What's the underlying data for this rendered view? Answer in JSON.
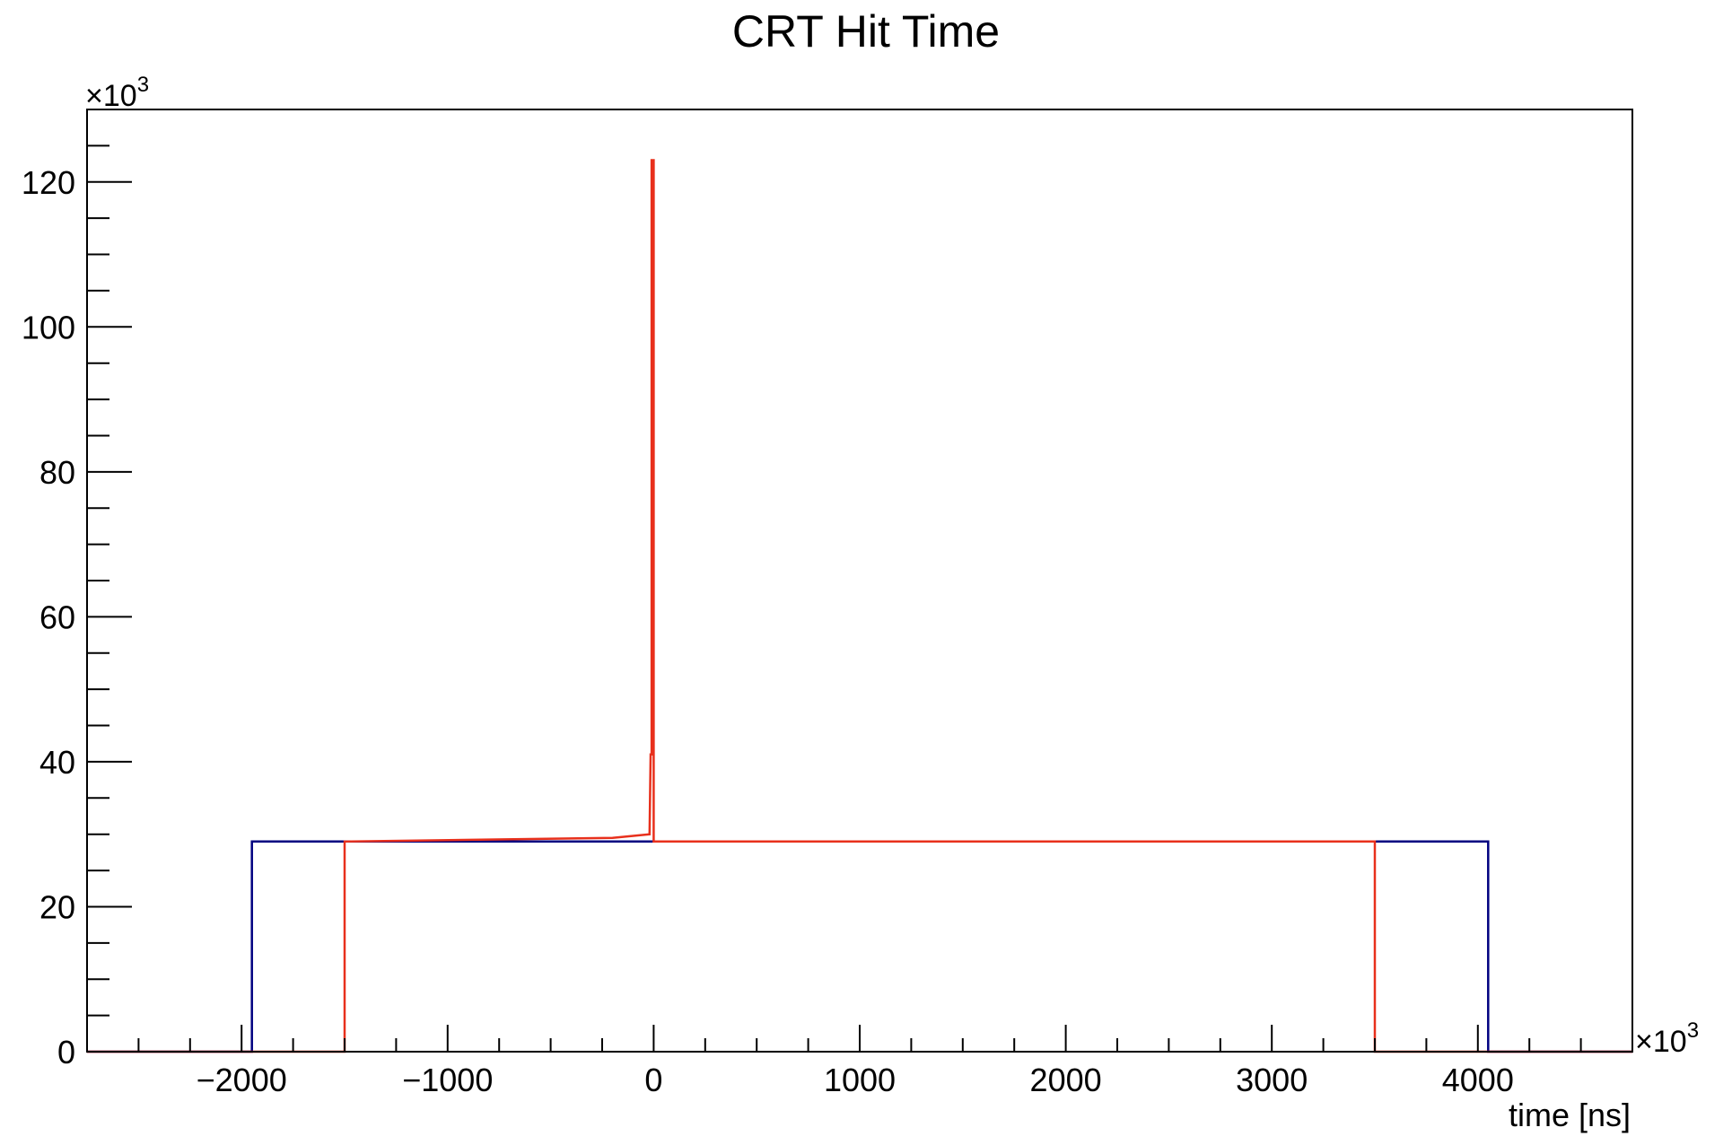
{
  "chart_data": {
    "type": "line",
    "title": "CRT Hit Time",
    "xlabel": "time [ns]",
    "ylabel": "",
    "x_multiplier_label": "×10",
    "x_multiplier_exp": "3",
    "y_multiplier_label": "×10",
    "y_multiplier_exp": "3",
    "xlim": [
      -2750,
      4750
    ],
    "ylim": [
      0,
      130
    ],
    "x_ticks": [
      -2000,
      -1000,
      0,
      1000,
      2000,
      3000,
      4000
    ],
    "x_tick_labels": [
      "−2000",
      "−1000",
      "0",
      "1000",
      "2000",
      "3000",
      "4000"
    ],
    "y_ticks": [
      0,
      20,
      40,
      60,
      80,
      100,
      120
    ],
    "y_tick_labels": [
      "0",
      "20",
      "40",
      "60",
      "80",
      "100",
      "120"
    ],
    "grid": false,
    "legend": "none",
    "series": [
      {
        "color": "#000080",
        "x": [
          -2750,
          -1950,
          -1950,
          -1500,
          3500,
          4050,
          4050,
          4750
        ],
        "y": [
          0,
          0,
          29,
          29,
          29,
          29,
          0,
          0
        ]
      },
      {
        "color": "#e8301c",
        "x": [
          -2750,
          -1500,
          -1500,
          -200,
          -20,
          -15,
          -10,
          -10,
          0,
          0,
          3500,
          3500,
          4750
        ],
        "y": [
          0,
          0,
          29,
          29.5,
          30,
          41,
          41,
          123,
          123,
          29,
          29,
          0,
          0
        ]
      }
    ]
  }
}
